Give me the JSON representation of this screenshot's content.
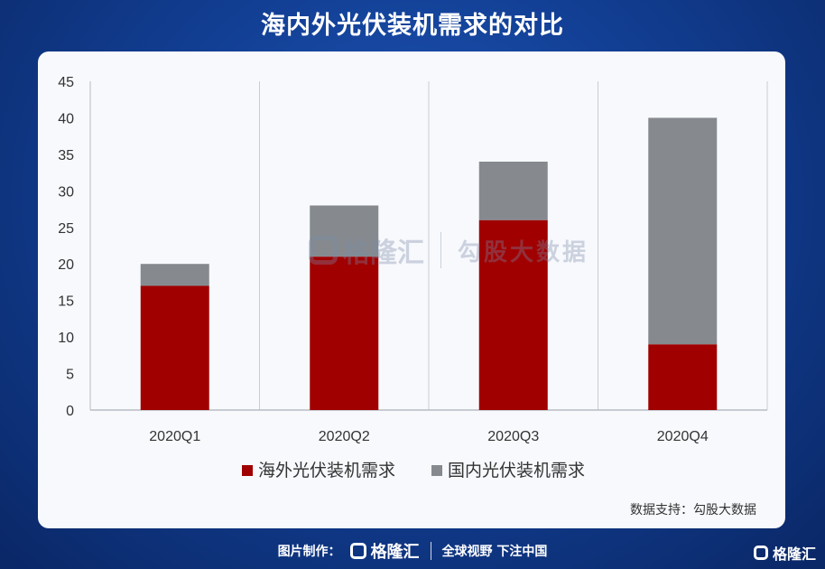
{
  "title": "海内外光伏装机需求的对比",
  "watermark": {
    "brand": "格隆汇",
    "partner": "勾股大数据"
  },
  "source": "数据支持：勾股大数据",
  "footer": {
    "made_by": "图片制作：",
    "brand": "格隆汇",
    "slogan": "全球视野 下注中国"
  },
  "corner_brand": "格隆汇",
  "colors": {
    "overseas": "#a00000",
    "domestic": "#868a8f",
    "grid": "#c9ced6",
    "axis": "#b8bcc4",
    "text": "#333333"
  },
  "chart_data": {
    "type": "bar",
    "stacked": true,
    "categories": [
      "2020Q1",
      "2020Q2",
      "2020Q3",
      "2020Q4"
    ],
    "series": [
      {
        "name": "海外光伏装机需求",
        "values": [
          17,
          21,
          26,
          9
        ]
      },
      {
        "name": "国内光伏装机需求",
        "values": [
          3,
          7,
          8,
          31
        ]
      }
    ],
    "ylim": [
      0,
      45
    ],
    "yticks": [
      0,
      5,
      10,
      15,
      20,
      25,
      30,
      35,
      40,
      45
    ],
    "legend": "bottom",
    "grid": "vertical-category-separators"
  }
}
